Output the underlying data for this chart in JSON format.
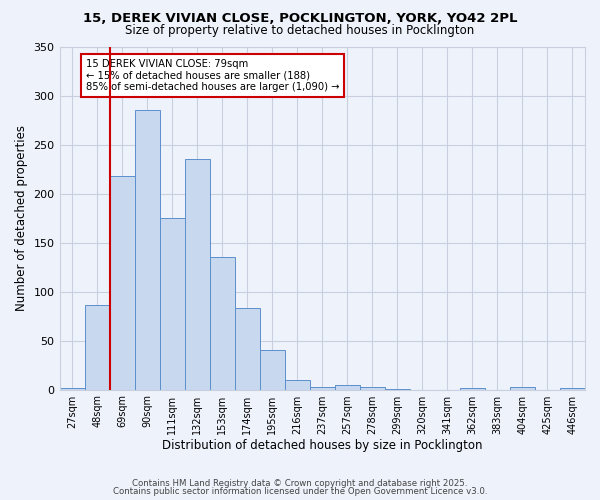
{
  "title1": "15, DEREK VIVIAN CLOSE, POCKLINGTON, YORK, YO42 2PL",
  "title2": "Size of property relative to detached houses in Pocklington",
  "xlabel": "Distribution of detached houses by size in Pocklington",
  "ylabel": "Number of detached properties",
  "bar_labels": [
    "27sqm",
    "48sqm",
    "69sqm",
    "90sqm",
    "111sqm",
    "132sqm",
    "153sqm",
    "174sqm",
    "195sqm",
    "216sqm",
    "237sqm",
    "257sqm",
    "278sqm",
    "299sqm",
    "320sqm",
    "341sqm",
    "362sqm",
    "383sqm",
    "404sqm",
    "425sqm",
    "446sqm"
  ],
  "bar_values": [
    2,
    86,
    218,
    285,
    175,
    235,
    135,
    83,
    40,
    10,
    3,
    5,
    3,
    1,
    0,
    0,
    2,
    0,
    3,
    0,
    2
  ],
  "bar_color": "#c8d8ef",
  "bar_edge_color": "#5b8fcc",
  "ylim": [
    0,
    350
  ],
  "yticks": [
    0,
    50,
    100,
    150,
    200,
    250,
    300,
    350
  ],
  "annotation_text": "15 DEREK VIVIAN CLOSE: 79sqm\n← 15% of detached houses are smaller (188)\n85% of semi-detached houses are larger (1,090) →",
  "vline_color": "#cc0000",
  "box_color": "#cc0000",
  "footer1": "Contains HM Land Registry data © Crown copyright and database right 2025.",
  "footer2": "Contains public sector information licensed under the Open Government Licence v3.0.",
  "bg_color": "#eef2fb",
  "plot_bg_color": "#eef2fb",
  "grid_color": "#c8d0e0"
}
